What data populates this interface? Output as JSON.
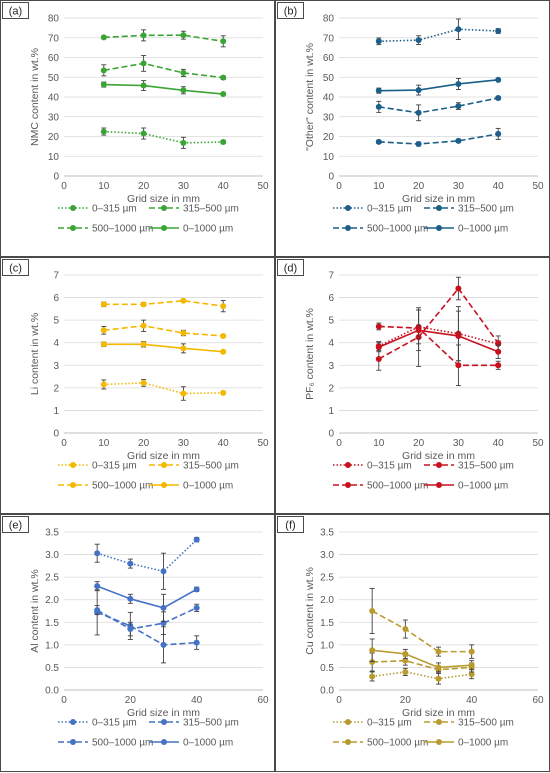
{
  "legend_labels": [
    "0–315 µm",
    "315–500 µm",
    "500–1000 µm",
    "0–1000 µm"
  ],
  "chart_data": [
    {
      "type": "line",
      "panel_label": "(a)",
      "xlabel": "Grid size in mm",
      "ylabel": "NMC content in wt.%",
      "xlim": [
        0,
        50
      ],
      "xticks": [
        0,
        10,
        20,
        30,
        40,
        50
      ],
      "ylim": [
        0,
        80
      ],
      "yticks": [
        0,
        10,
        20,
        30,
        40,
        50,
        60,
        70,
        80
      ],
      "color": "#3aa535",
      "grid": "horizontal",
      "x": [
        10,
        20,
        30,
        40
      ],
      "series": [
        {
          "name": "0–315 µm",
          "style": "dotted",
          "values": [
            22.5,
            21.5,
            16.8,
            17.2
          ],
          "err": [
            1.8,
            2.8,
            2.8,
            0.8
          ]
        },
        {
          "name": "315–500 µm",
          "style": "dashed",
          "values": [
            70.2,
            71.2,
            71.3,
            68.2
          ],
          "err": [
            0.7,
            2.8,
            2.0,
            2.8
          ]
        },
        {
          "name": "500–1000 µm",
          "style": "dashed",
          "values": [
            53.5,
            57.0,
            52.2,
            49.8
          ],
          "err": [
            2.8,
            4.0,
            1.8,
            0.9
          ]
        },
        {
          "name": "0–1000 µm",
          "style": "solid",
          "values": [
            46.3,
            45.8,
            43.4,
            41.5
          ],
          "err": [
            1.3,
            2.5,
            1.8,
            0.6
          ]
        }
      ]
    },
    {
      "type": "line",
      "panel_label": "(b)",
      "xlabel": "Grid size in mm",
      "ylabel": "\"Other\" content in wt.%",
      "xlim": [
        0,
        50
      ],
      "xticks": [
        0,
        10,
        20,
        30,
        40,
        50
      ],
      "ylim": [
        0,
        80
      ],
      "yticks": [
        0,
        10,
        20,
        30,
        40,
        50,
        60,
        70,
        80
      ],
      "color": "#1c5f88",
      "grid": "horizontal",
      "x": [
        10,
        20,
        30,
        40
      ],
      "series": [
        {
          "name": "0–315 µm",
          "style": "dotted",
          "values": [
            68.2,
            68.8,
            74.3,
            73.4
          ],
          "err": [
            1.7,
            2.2,
            5.2,
            1.2
          ]
        },
        {
          "name": "315–500 µm",
          "style": "dashed",
          "values": [
            17.3,
            16.2,
            17.8,
            21.3
          ],
          "err": [
            0.8,
            1.0,
            0.8,
            2.8
          ]
        },
        {
          "name": "500–1000 µm",
          "style": "dashed",
          "values": [
            35.0,
            32.0,
            35.4,
            39.5
          ],
          "err": [
            2.8,
            4.0,
            1.7,
            0.8
          ]
        },
        {
          "name": "0–1000 µm",
          "style": "solid",
          "values": [
            43.2,
            43.5,
            46.6,
            48.7
          ],
          "err": [
            1.3,
            2.5,
            2.8,
            0.6
          ]
        }
      ]
    },
    {
      "type": "line",
      "panel_label": "(c)",
      "xlabel": "Grid size in mm",
      "ylabel": "Li content in wt.%",
      "xlim": [
        0,
        50
      ],
      "xticks": [
        0,
        10,
        20,
        30,
        40,
        50
      ],
      "ylim": [
        0,
        7
      ],
      "yticks": [
        0,
        1,
        2,
        3,
        4,
        5,
        6,
        7
      ],
      "color": "#f5b800",
      "grid": "horizontal",
      "x": [
        10,
        20,
        30,
        40
      ],
      "series": [
        {
          "name": "0–315 µm",
          "style": "dotted",
          "values": [
            2.15,
            2.22,
            1.75,
            1.78
          ],
          "err": [
            0.2,
            0.15,
            0.3,
            0.05
          ]
        },
        {
          "name": "315–500 µm",
          "style": "dashed",
          "values": [
            5.7,
            5.7,
            5.86,
            5.62
          ],
          "err": [
            0.1,
            0.08,
            0.05,
            0.25
          ]
        },
        {
          "name": "500–1000 µm",
          "style": "dashed",
          "values": [
            4.55,
            4.75,
            4.43,
            4.3
          ],
          "err": [
            0.17,
            0.25,
            0.12,
            0.05
          ]
        },
        {
          "name": "0–1000 µm",
          "style": "solid",
          "values": [
            3.93,
            3.93,
            3.75,
            3.6
          ],
          "err": [
            0.1,
            0.12,
            0.2,
            0.05
          ]
        }
      ]
    },
    {
      "type": "line",
      "panel_label": "(d)",
      "xlabel": "Grid size in mm",
      "ylabel": "PF₆ content in wt.%",
      "xlim": [
        0,
        50
      ],
      "xticks": [
        0,
        10,
        20,
        30,
        40,
        50
      ],
      "ylim": [
        0,
        7
      ],
      "yticks": [
        0,
        1,
        2,
        3,
        4,
        5,
        6,
        7
      ],
      "color": "#c8101f",
      "grid": "horizontal",
      "x": [
        10,
        20,
        30,
        40
      ],
      "series": [
        {
          "name": "0–315 µm",
          "style": "dotted",
          "values": [
            3.85,
            4.7,
            4.4,
            3.95
          ],
          "err": [
            0.2,
            0.75,
            1.2,
            0.35
          ]
        },
        {
          "name": "315–500 µm",
          "style": "dashed",
          "values": [
            3.28,
            4.25,
            6.4,
            3.98
          ],
          "err": [
            0.5,
            1.3,
            0.5,
            0.1
          ]
        },
        {
          "name": "500–1000 µm",
          "style": "dashed",
          "values": [
            4.72,
            4.65,
            3.0,
            3.0
          ],
          "err": [
            0.15,
            0.1,
            0.9,
            0.18
          ]
        },
        {
          "name": "0–1000 µm",
          "style": "solid",
          "values": [
            3.8,
            4.55,
            4.3,
            3.6
          ],
          "err": [
            0.2,
            0.9,
            1.1,
            0.3
          ]
        }
      ]
    },
    {
      "type": "line",
      "panel_label": "(e)",
      "xlabel": "Grid size in mm",
      "ylabel": "Al content in wt.%",
      "xlim": [
        0,
        60
      ],
      "xticks": [
        0,
        20,
        40,
        60
      ],
      "ylim": [
        0,
        3.5
      ],
      "yticks": [
        0,
        0.5,
        1.0,
        1.5,
        2.0,
        2.5,
        3.0,
        3.5
      ],
      "ytick_labels": [
        "0.0",
        "0.5",
        "1.0",
        "1.5",
        "2.0",
        "2.5",
        "3.0",
        "3.5"
      ],
      "color": "#4472c4",
      "grid": "horizontal",
      "x": [
        10,
        20,
        30,
        40
      ],
      "series": [
        {
          "name": "0–315 µm",
          "style": "dotted",
          "values": [
            3.03,
            2.8,
            2.63,
            3.33
          ],
          "err": [
            0.2,
            0.1,
            0.4,
            0.05
          ]
        },
        {
          "name": "315–500 µm",
          "style": "dashed",
          "values": [
            1.72,
            1.42,
            1.0,
            1.05
          ],
          "err": [
            0.5,
            0.3,
            0.4,
            0.15
          ]
        },
        {
          "name": "500–1000 µm",
          "style": "dashed",
          "values": [
            1.77,
            1.35,
            1.48,
            1.82
          ],
          "err": [
            0.1,
            0.15,
            0.25,
            0.08
          ]
        },
        {
          "name": "0–1000 µm",
          "style": "solid",
          "values": [
            2.3,
            2.02,
            1.82,
            2.23
          ],
          "err": [
            0.1,
            0.1,
            0.3,
            0.05
          ]
        }
      ]
    },
    {
      "type": "line",
      "panel_label": "(f)",
      "xlabel": "Grid size in mm",
      "ylabel": "Cu content in wt.%",
      "xlim": [
        0,
        60
      ],
      "xticks": [
        0,
        20,
        40,
        60
      ],
      "ylim": [
        0,
        3.5
      ],
      "yticks": [
        0,
        0.5,
        1.0,
        1.5,
        2.0,
        2.5,
        3.0,
        3.5
      ],
      "ytick_labels": [
        "0.0",
        "0.5",
        "1.0",
        "1.5",
        "2.0",
        "2.5",
        "3.0",
        "3.5"
      ],
      "color": "#b89a2e",
      "grid": "horizontal",
      "x": [
        10,
        20,
        30,
        40
      ],
      "series": [
        {
          "name": "0–315 µm",
          "style": "dotted",
          "values": [
            0.3,
            0.4,
            0.25,
            0.35
          ],
          "err": [
            0.1,
            0.08,
            0.12,
            0.1
          ]
        },
        {
          "name": "315–500 µm",
          "style": "dashed",
          "values": [
            1.75,
            1.35,
            0.85,
            0.85
          ],
          "err": [
            0.5,
            0.2,
            0.1,
            0.15
          ]
        },
        {
          "name": "500–1000 µm",
          "style": "dashed",
          "values": [
            0.62,
            0.65,
            0.45,
            0.5
          ],
          "err": [
            0.2,
            0.1,
            0.08,
            0.1
          ]
        },
        {
          "name": "0–1000 µm",
          "style": "solid",
          "values": [
            0.88,
            0.8,
            0.5,
            0.55
          ],
          "err": [
            0.25,
            0.1,
            0.1,
            0.1
          ]
        }
      ]
    }
  ]
}
